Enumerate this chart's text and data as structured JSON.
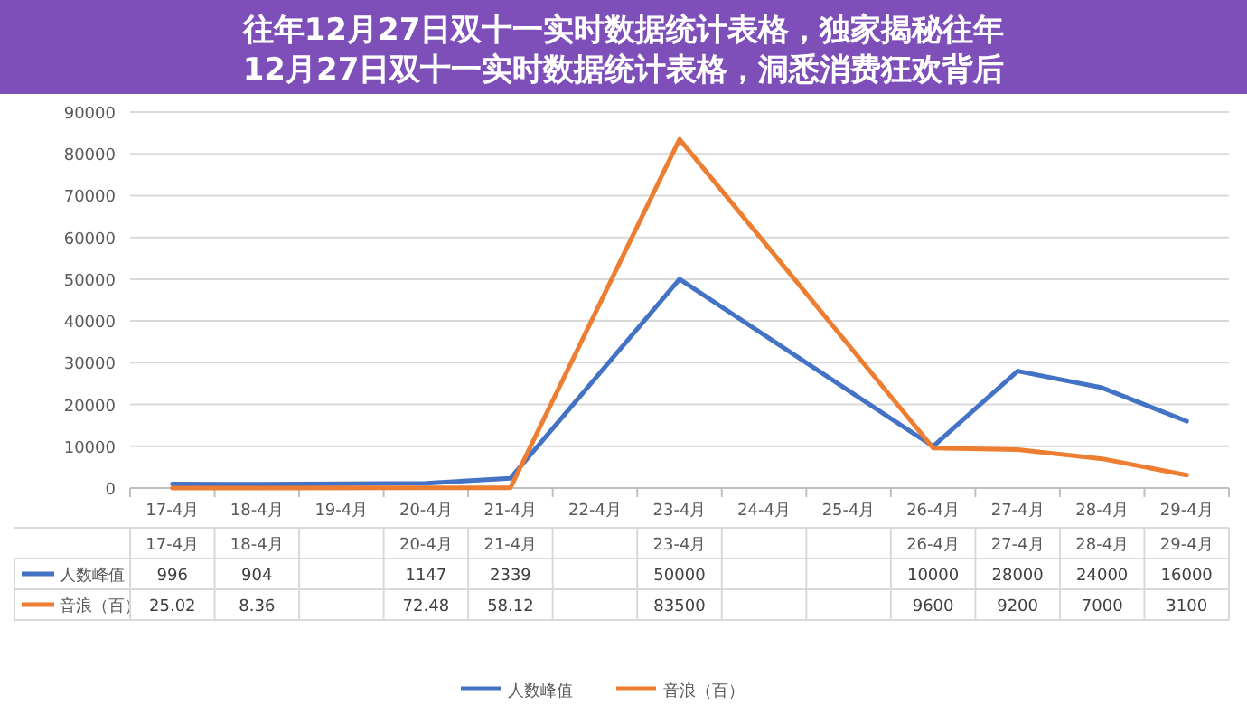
{
  "chart_data": {
    "type": "line",
    "title": "往年12月27日双十一实时数据统计表格，独家揭秘往年12月27日双十一实时数据统计表格，洞悉消费狂欢背后",
    "categories": [
      "17-4月",
      "18-4月",
      "19-4月",
      "20-4月",
      "21-4月",
      "22-4月",
      "23-4月",
      "24-4月",
      "25-4月",
      "26-4月",
      "27-4月",
      "28-4月",
      "29-4月"
    ],
    "series": [
      {
        "name": "人数峰值",
        "color": "#4472c4",
        "values": [
          996,
          904,
          null,
          1147,
          2339,
          null,
          50000,
          null,
          null,
          10000,
          28000,
          24000,
          16000
        ],
        "value_labels": [
          "996",
          "904",
          null,
          "1147",
          "2339",
          null,
          "50000",
          null,
          null,
          "10000",
          "28000",
          "24000",
          "16000"
        ]
      },
      {
        "name": "音浪（百）",
        "color": "#ed7d31",
        "values": [
          25.02,
          8.36,
          null,
          72.48,
          58.12,
          null,
          83500,
          null,
          null,
          9600,
          9200,
          7000,
          3100
        ],
        "value_labels": [
          "25.02",
          "8.36",
          null,
          "72.48",
          "58.12",
          null,
          "83500",
          null,
          null,
          "9600",
          "9200",
          "7000",
          "3100"
        ]
      }
    ],
    "ylim": [
      0,
      90000
    ],
    "yticks": [
      0,
      10000,
      20000,
      30000,
      40000,
      50000,
      60000,
      70000,
      80000,
      90000
    ],
    "grid": "y",
    "legend": "bottom",
    "marker": "none",
    "line_style": "solid"
  }
}
